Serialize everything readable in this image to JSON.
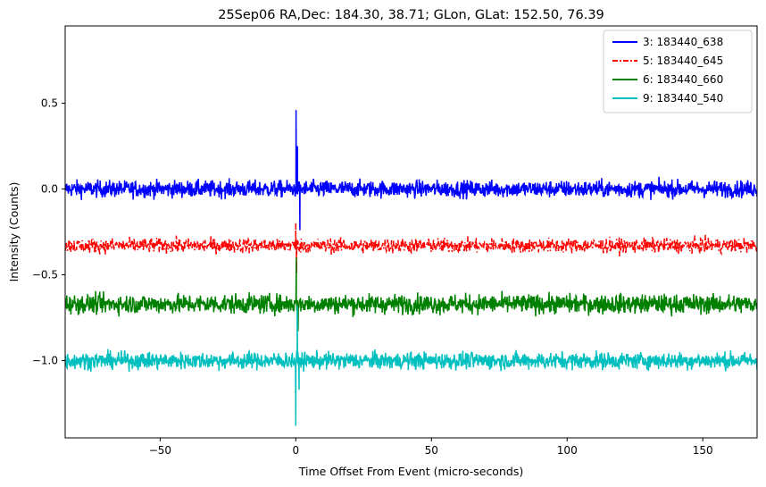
{
  "chart_data": {
    "type": "line",
    "title": "25Sep06 RA,Dec:  184.30,  38.71; GLon, GLat:  152.50,  76.39",
    "xlabel": "Time Offset From Event (micro-seconds)",
    "ylabel": "Intensity (Counts)",
    "xlim": [
      -85,
      170
    ],
    "ylim": [
      -1.45,
      0.95
    ],
    "x_ticks": [
      -50,
      0,
      50,
      100,
      150
    ],
    "x_tick_labels": [
      "−50",
      "0",
      "50",
      "100",
      "150"
    ],
    "y_ticks": [
      0.5,
      0.0,
      -0.5,
      -1.0
    ],
    "y_tick_labels": [
      "0.5",
      "0.0",
      "−0.5",
      "−1.0"
    ],
    "grid": false,
    "legend_position": "top-right",
    "series": [
      {
        "name": "3: 183440_638",
        "label": "  3: 183440_638",
        "color": "#0000ff",
        "style": "solid",
        "baseline": 0.0,
        "noise": 0.035,
        "spikes": [
          {
            "x": 0.1,
            "y": 0.46
          },
          {
            "x": 0.6,
            "y": 0.25
          },
          {
            "x": 1.5,
            "y": -0.24
          }
        ]
      },
      {
        "name": "5: 183440_645",
        "label": "  5: 183440_645",
        "color": "#ff0000",
        "style": "dashdot",
        "baseline": -0.33,
        "noise": 0.03,
        "spikes": [
          {
            "x": 0.0,
            "y": -0.2
          },
          {
            "x": 0.3,
            "y": -0.49
          }
        ]
      },
      {
        "name": "6: 183440_660",
        "label": "  6: 183440_660",
        "color": "#008000",
        "style": "solid",
        "baseline": -0.67,
        "noise": 0.04,
        "spikes": [
          {
            "x": 0.2,
            "y": -0.4
          },
          {
            "x": 0.8,
            "y": -0.83
          }
        ]
      },
      {
        "name": "9: 183440_540",
        "label": "  9: 183440_540",
        "color": "#00bfbf",
        "style": "solid",
        "baseline": -1.0,
        "noise": 0.035,
        "spikes": [
          {
            "x": 0.0,
            "y": -1.38
          },
          {
            "x": 0.5,
            "y": -0.68
          },
          {
            "x": 1.2,
            "y": -1.17
          }
        ]
      }
    ]
  }
}
